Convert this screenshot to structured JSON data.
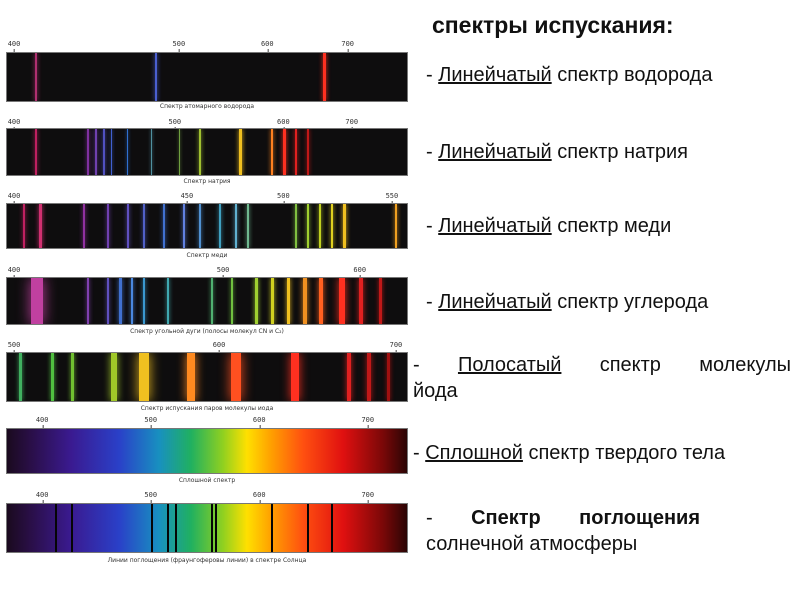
{
  "title": "спектры испускания:",
  "items": [
    {
      "dash": "- ",
      "underlined": "Линейчатый",
      "rest": " спектр водорода"
    },
    {
      "dash": "- ",
      "underlined": "Линейчатый",
      "rest": " спектр натрия"
    },
    {
      "dash": "- ",
      "underlined": "Линейчатый",
      "rest": " спектр меди"
    },
    {
      "dash": "- ",
      "underlined": "Линейчатый",
      "rest": " спектр углерода"
    },
    {
      "dash": "- ",
      "underlined": "Полосатый",
      "rest": " спектр молекулы",
      "line2": "йода"
    },
    {
      "dash": "- ",
      "underlined": "Сплошной",
      "rest": " спектр твердого тела"
    },
    {
      "dash": "- ",
      "bold": "Спектр поглощения",
      "line2": "солнечной атмосферы"
    }
  ],
  "spectra": [
    {
      "caption": "Спектр атомарного водорода",
      "ticks": [
        "400",
        "500",
        "600",
        "700"
      ],
      "lines": [
        {
          "color": "#b03070",
          "w": 2
        },
        {
          "color": "#4a5fd0",
          "w": 2
        },
        {
          "color": "#ff3020",
          "w": 3
        }
      ]
    },
    {
      "caption": "Спектр натрия",
      "ticks": [
        "400",
        "500",
        "600",
        "700"
      ],
      "lines": [
        {
          "color": "#c02060",
          "w": 2
        },
        {
          "color": "#8030a0",
          "w": 2
        },
        {
          "color": "#7040b0",
          "w": 2
        },
        {
          "color": "#5050c0",
          "w": 2
        },
        {
          "color": "#4060d0",
          "w": 1
        },
        {
          "color": "#3070d0",
          "w": 1
        },
        {
          "color": "#5090a0",
          "w": 1
        },
        {
          "color": "#70a040",
          "w": 1
        },
        {
          "color": "#a0c030",
          "w": 2
        },
        {
          "color": "#f0c020",
          "w": 3
        },
        {
          "color": "#ff8020",
          "w": 2
        },
        {
          "color": "#ff3020",
          "w": 3
        },
        {
          "color": "#e02020",
          "w": 2
        },
        {
          "color": "#c01818",
          "w": 2
        }
      ]
    },
    {
      "caption": "Спектр меди",
      "ticks": [
        "400",
        "450",
        "500",
        "550"
      ],
      "lines": [
        {
          "color": "#c02060",
          "w": 2
        },
        {
          "color": "#d03070",
          "w": 3
        },
        {
          "color": "#9030a0",
          "w": 2
        },
        {
          "color": "#7040b0",
          "w": 2
        },
        {
          "color": "#6050c0",
          "w": 2
        },
        {
          "color": "#5060c8",
          "w": 2
        },
        {
          "color": "#4070d0",
          "w": 2
        },
        {
          "color": "#6080e0",
          "w": 2
        },
        {
          "color": "#5090d0",
          "w": 2
        },
        {
          "color": "#40a0c0",
          "w": 2
        },
        {
          "color": "#60b0d0",
          "w": 2
        },
        {
          "color": "#70b890",
          "w": 2
        },
        {
          "color": "#80c040",
          "w": 2
        },
        {
          "color": "#a0d030",
          "w": 2
        },
        {
          "color": "#c0d020",
          "w": 2
        },
        {
          "color": "#e0d020",
          "w": 2
        },
        {
          "color": "#f0c020",
          "w": 3
        },
        {
          "color": "#f0a020",
          "w": 2
        }
      ]
    },
    {
      "caption": "Спектр угольной дуги (полосы молекул CN и C₂)",
      "ticks": [
        "400",
        "500",
        "600"
      ],
      "lines": [
        {
          "color": "#c040a0",
          "w": 12
        },
        {
          "color": "#8040b0",
          "w": 2
        },
        {
          "color": "#6050c0",
          "w": 2
        },
        {
          "color": "#4070d0",
          "w": 3
        },
        {
          "color": "#4a88e0",
          "w": 2
        },
        {
          "color": "#3a98d0",
          "w": 2
        },
        {
          "color": "#40a8b0",
          "w": 2
        },
        {
          "color": "#50b070",
          "w": 2
        },
        {
          "color": "#70c040",
          "w": 2
        },
        {
          "color": "#a0d030",
          "w": 3
        },
        {
          "color": "#d0d020",
          "w": 3
        },
        {
          "color": "#f0c020",
          "w": 3
        },
        {
          "color": "#f09020",
          "w": 4
        },
        {
          "color": "#ff6020",
          "w": 4
        },
        {
          "color": "#ff3020",
          "w": 6
        },
        {
          "color": "#e02020",
          "w": 4
        },
        {
          "color": "#c01818",
          "w": 3
        }
      ]
    },
    {
      "caption": "Спектр испускания паров молекулы иода",
      "ticks": [
        "500",
        "600",
        "700"
      ],
      "lines": [
        {
          "color": "#40b060",
          "w": 3
        },
        {
          "color": "#50c040",
          "w": 3
        },
        {
          "color": "#70c030",
          "w": 3
        },
        {
          "color": "#a0c828",
          "w": 6
        },
        {
          "color": "#f0c020",
          "w": 10
        },
        {
          "color": "#ff8a20",
          "w": 8
        },
        {
          "color": "#ff5020",
          "w": 10
        },
        {
          "color": "#ff3020",
          "w": 8
        },
        {
          "color": "#e02020",
          "w": 4
        },
        {
          "color": "#c01818",
          "w": 4
        },
        {
          "color": "#a01010",
          "w": 3
        }
      ]
    },
    {
      "caption": "Сплошной спектр",
      "ticks": [
        "400",
        "500",
        "600",
        "700"
      ],
      "continuous": true
    },
    {
      "caption": "Линии поглощения (фраунгоферовы линии) в спектре Солнца",
      "ticks": [
        "400",
        "500",
        "600",
        "700"
      ],
      "continuous": true,
      "absorption": [
        0.12,
        0.16,
        0.36,
        0.4,
        0.42,
        0.51,
        0.52,
        0.66,
        0.75,
        0.81
      ]
    }
  ]
}
